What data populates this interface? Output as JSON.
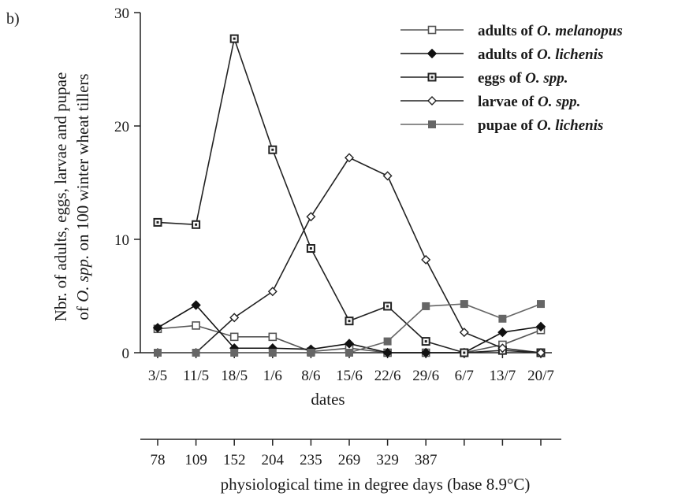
{
  "panel_label": "b)",
  "chart_data": {
    "type": "line",
    "categories": [
      "3/5",
      "11/5",
      "18/5",
      "1/6",
      "8/6",
      "15/6",
      "22/6",
      "29/6",
      "6/7",
      "13/7",
      "20/7"
    ],
    "xlabel": "dates",
    "ylabel_line1": "Nbr. of adults, eggs, larvae and pupae",
    "ylabel_line2": "of O. spp. on 100 winter wheat tillers",
    "ylim": [
      0,
      30
    ],
    "yticks": [
      0,
      10,
      20,
      30
    ],
    "grid": false,
    "legend_position": "top-right",
    "series": [
      {
        "name": "adults of O. melanopus",
        "prefix": "adults  of ",
        "italic": "O. melanopus",
        "marker": "open-square",
        "color": "#555555",
        "values": [
          2.1,
          2.4,
          1.4,
          1.4,
          0.1,
          0.4,
          0.0,
          0.0,
          0.0,
          0.7,
          2.0
        ]
      },
      {
        "name": "adults of O. lichenis",
        "prefix": "adults  of ",
        "italic": "O. lichenis",
        "marker": "filled-diamond",
        "color": "#111111",
        "values": [
          2.2,
          4.2,
          0.4,
          0.4,
          0.3,
          0.8,
          0.0,
          0.0,
          0.0,
          1.8,
          2.3
        ]
      },
      {
        "name": "eggs of O. spp.",
        "prefix": "eggs  of ",
        "italic": "O. spp.",
        "marker": "dot-square",
        "color": "#222222",
        "values": [
          11.5,
          11.3,
          27.7,
          17.9,
          9.2,
          2.8,
          4.1,
          1.0,
          0.0,
          0.2,
          0.0
        ]
      },
      {
        "name": "larvae of O. spp.",
        "prefix": "larvae  of ",
        "italic": "O. spp.",
        "marker": "open-diamond",
        "color": "#222222",
        "values": [
          0.0,
          0.0,
          3.1,
          5.4,
          12.0,
          17.2,
          15.6,
          8.2,
          1.8,
          0.4,
          0.0
        ]
      },
      {
        "name": "pupae of O. lichenis",
        "prefix": "pupae of ",
        "italic": "O. lichenis",
        "marker": "filled-square",
        "color": "#666666",
        "values": [
          0.0,
          0.0,
          0.0,
          0.0,
          0.0,
          0.0,
          1.0,
          4.1,
          4.3,
          3.0,
          4.3
        ]
      }
    ],
    "secondary_axis": {
      "label": "physiological time in degree days (base 8.9°C)",
      "tick_labels": [
        "78",
        "109",
        "152",
        "204",
        "235",
        "269",
        "329",
        "387",
        "",
        "",
        ""
      ]
    }
  }
}
